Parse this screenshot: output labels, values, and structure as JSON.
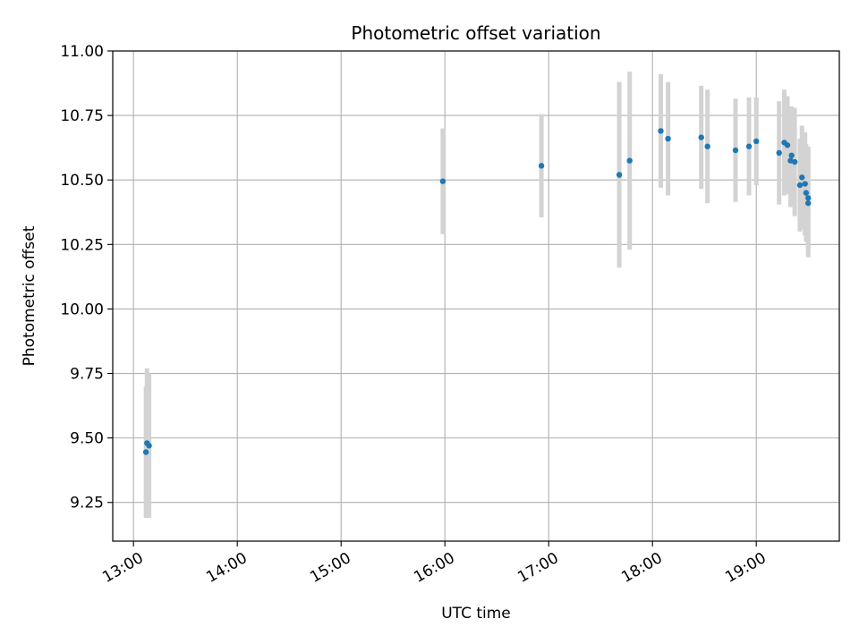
{
  "chart_data": {
    "type": "scatter",
    "title": "Photometric offset variation",
    "xlabel": "UTC time",
    "ylabel": "Photometric offset",
    "x_unit": "hour of day (UTC)",
    "xlim": [
      12.8,
      19.8
    ],
    "ylim": [
      9.1,
      11.0
    ],
    "x_ticks": [
      {
        "value": 13,
        "label": "13:00"
      },
      {
        "value": 14,
        "label": "14:00"
      },
      {
        "value": 15,
        "label": "15:00"
      },
      {
        "value": 16,
        "label": "16:00"
      },
      {
        "value": 17,
        "label": "17:00"
      },
      {
        "value": 18,
        "label": "18:00"
      },
      {
        "value": 19,
        "label": "19:00"
      }
    ],
    "y_ticks": [
      {
        "value": 9.25,
        "label": "9.25"
      },
      {
        "value": 9.5,
        "label": "9.50"
      },
      {
        "value": 9.75,
        "label": "9.75"
      },
      {
        "value": 10.0,
        "label": "10.00"
      },
      {
        "value": 10.25,
        "label": "10.25"
      },
      {
        "value": 10.5,
        "label": "10.50"
      },
      {
        "value": 10.75,
        "label": "10.75"
      },
      {
        "value": 11.0,
        "label": "11.00"
      }
    ],
    "grid": true,
    "marker_color": "#1f77b4",
    "errorbar_color": "#d3d3d3",
    "points": [
      {
        "x": 13.12,
        "y": 9.445,
        "err": 0.255
      },
      {
        "x": 13.13,
        "y": 9.48,
        "err": 0.29
      },
      {
        "x": 13.15,
        "y": 9.47,
        "err": 0.28
      },
      {
        "x": 15.98,
        "y": 10.495,
        "err": 0.205
      },
      {
        "x": 16.93,
        "y": 10.555,
        "err": 0.2
      },
      {
        "x": 17.68,
        "y": 10.52,
        "err": 0.36
      },
      {
        "x": 17.78,
        "y": 10.575,
        "err": 0.345
      },
      {
        "x": 18.08,
        "y": 10.69,
        "err": 0.22
      },
      {
        "x": 18.15,
        "y": 10.66,
        "err": 0.22
      },
      {
        "x": 18.47,
        "y": 10.665,
        "err": 0.2
      },
      {
        "x": 18.53,
        "y": 10.63,
        "err": 0.22
      },
      {
        "x": 18.8,
        "y": 10.615,
        "err": 0.2
      },
      {
        "x": 18.93,
        "y": 10.63,
        "err": 0.19
      },
      {
        "x": 19.0,
        "y": 10.65,
        "err": 0.17
      },
      {
        "x": 19.22,
        "y": 10.605,
        "err": 0.2
      },
      {
        "x": 19.27,
        "y": 10.645,
        "err": 0.205
      },
      {
        "x": 19.3,
        "y": 10.635,
        "err": 0.19
      },
      {
        "x": 19.33,
        "y": 10.575,
        "err": 0.18
      },
      {
        "x": 19.34,
        "y": 10.595,
        "err": 0.19
      },
      {
        "x": 19.37,
        "y": 10.57,
        "err": 0.21
      },
      {
        "x": 19.42,
        "y": 10.48,
        "err": 0.18
      },
      {
        "x": 19.44,
        "y": 10.51,
        "err": 0.2
      },
      {
        "x": 19.47,
        "y": 10.485,
        "err": 0.2
      },
      {
        "x": 19.48,
        "y": 10.45,
        "err": 0.19
      },
      {
        "x": 19.5,
        "y": 10.43,
        "err": 0.2
      },
      {
        "x": 19.5,
        "y": 10.41,
        "err": 0.21
      }
    ]
  }
}
